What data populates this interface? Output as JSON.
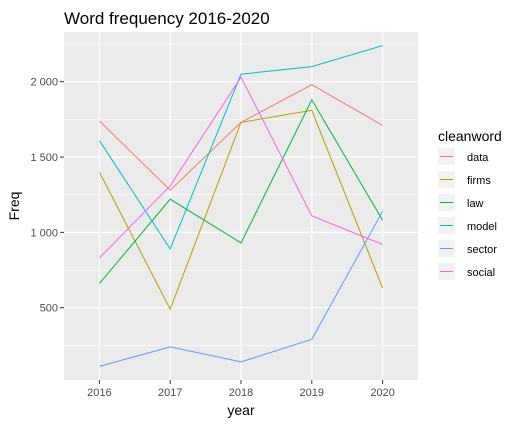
{
  "chart_data": {
    "type": "line",
    "title": "Word frequency 2016-2020",
    "xlabel": "year",
    "ylabel": "Freq",
    "x": [
      2016,
      2017,
      2018,
      2019,
      2020
    ],
    "x_tick_labels": [
      "2016",
      "2017",
      "2018",
      "2019",
      "2020"
    ],
    "xlim": [
      2015.5,
      2020.5
    ],
    "ylim": [
      20,
      2330
    ],
    "y_ticks": [
      500,
      1000,
      1500,
      2000
    ],
    "y_tick_labels": [
      "500",
      "1 000",
      "1 500",
      "2 000"
    ],
    "grid": true,
    "legend_position": "right",
    "legend_title": "cleanword",
    "series": [
      {
        "name": "data",
        "color": "#F8766D",
        "values": [
          1740,
          1280,
          1730,
          1980,
          1710
        ]
      },
      {
        "name": "firms",
        "color": "#B79F00",
        "values": [
          1400,
          490,
          1730,
          1810,
          630
        ]
      },
      {
        "name": "law",
        "color": "#00BA38",
        "values": [
          660,
          1220,
          930,
          1880,
          1080
        ]
      },
      {
        "name": "model",
        "color": "#00BFC4",
        "values": [
          1610,
          890,
          2050,
          2100,
          2240
        ]
      },
      {
        "name": "sector",
        "color": "#619CFF",
        "values": [
          110,
          240,
          140,
          290,
          1140
        ]
      },
      {
        "name": "social",
        "color": "#F564E3",
        "values": [
          830,
          1310,
          2030,
          1110,
          920
        ]
      }
    ]
  }
}
